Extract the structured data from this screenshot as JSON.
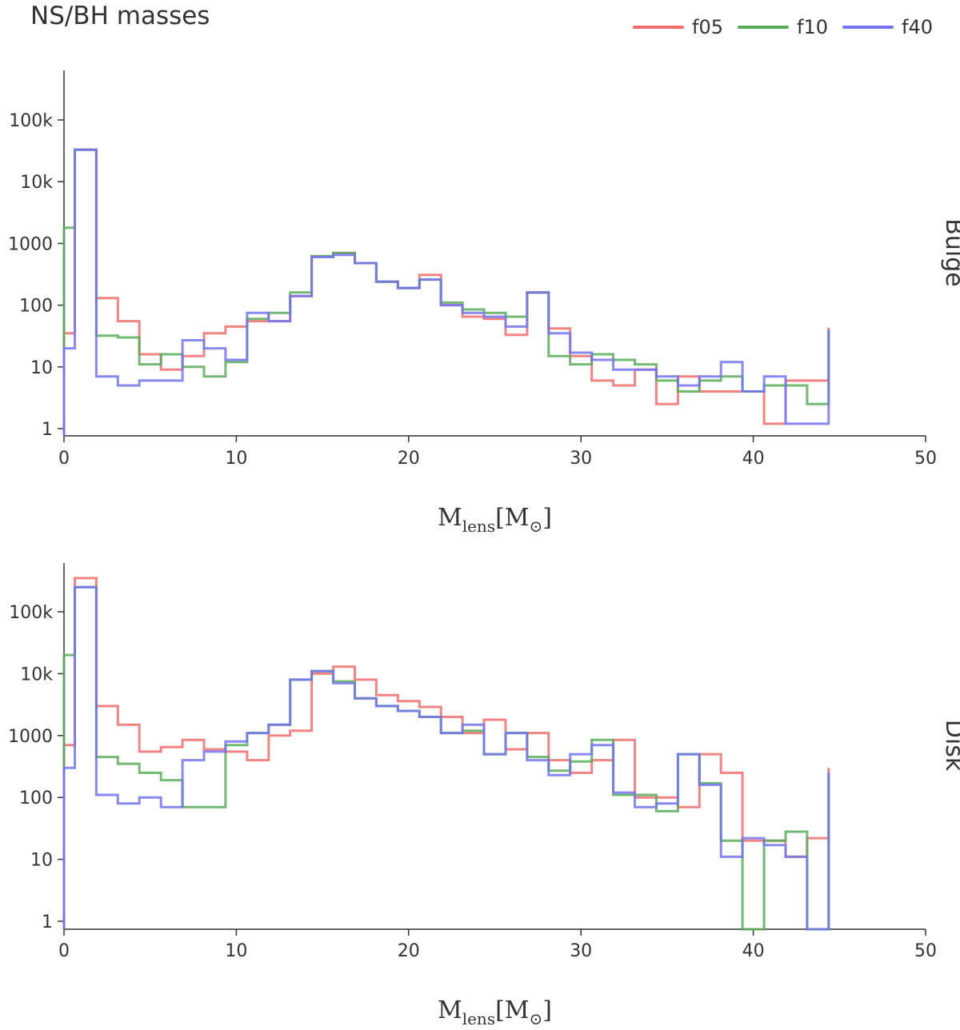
{
  "title": "NS/BH masses",
  "legend": [
    {
      "name": "f05",
      "color": "#f06e6e"
    },
    {
      "name": "f10",
      "color": "#5aac5a"
    },
    {
      "name": "f40",
      "color": "#7474f0"
    }
  ],
  "chart_data": [
    {
      "type": "histogram-step",
      "panel_label": "Bulge",
      "xlabel_main": "M",
      "xlabel_sub": "lens",
      "xlabel_unit_open": "[M",
      "xlabel_unit_sub": "⊙",
      "xlabel_unit_close": "]",
      "yscale": "log",
      "xlim": [
        0,
        50
      ],
      "ylim": [
        0.8,
        600000
      ],
      "xticks": [
        0,
        10,
        20,
        30,
        40,
        50
      ],
      "xtick_labels": [
        "0",
        "10",
        "20",
        "30",
        "40",
        "50"
      ],
      "yticks": [
        1,
        10,
        100,
        1000,
        10000,
        100000
      ],
      "ytick_labels": [
        "1",
        "10",
        "100",
        "1000",
        "10k",
        "100k"
      ],
      "bin_edges": [
        0,
        0.625,
        1.875,
        3.125,
        4.375,
        5.625,
        6.875,
        8.125,
        9.375,
        10.625,
        11.875,
        13.125,
        14.375,
        15.625,
        16.875,
        18.125,
        19.375,
        20.625,
        21.875,
        23.125,
        24.375,
        25.625,
        26.875,
        28.125,
        29.375,
        30.625,
        31.875,
        33.125,
        34.375,
        35.625,
        36.875,
        38.125,
        39.375,
        40.625,
        41.875,
        43.125,
        44.375
      ],
      "series": [
        {
          "name": "f05",
          "values": [
            35,
            33000,
            130,
            55,
            16,
            9,
            15,
            35,
            45,
            55,
            55,
            140,
            620,
            700,
            480,
            240,
            190,
            310,
            100,
            65,
            60,
            33,
            160,
            42,
            15,
            6,
            5,
            9,
            2.5,
            7,
            4,
            4,
            4,
            1.2,
            6,
            6,
            43
          ]
        },
        {
          "name": "f10",
          "values": [
            1800,
            33000,
            32,
            30,
            11,
            16,
            10,
            7,
            12,
            60,
            75,
            160,
            620,
            700,
            480,
            240,
            190,
            260,
            110,
            85,
            75,
            65,
            160,
            15,
            11,
            16,
            13,
            11,
            6,
            4,
            6,
            7,
            4,
            5,
            5,
            2.5,
            40
          ]
        },
        {
          "name": "f40",
          "values": [
            20,
            33000,
            7,
            5,
            6,
            6,
            27,
            20,
            13,
            75,
            55,
            140,
            600,
            650,
            480,
            240,
            190,
            260,
            100,
            75,
            65,
            45,
            160,
            35,
            17,
            13,
            9,
            9,
            7,
            5,
            7,
            12,
            4,
            7,
            1.2,
            1.2,
            40
          ]
        }
      ]
    },
    {
      "type": "histogram-step",
      "panel_label": "Disk",
      "xlabel_main": "M",
      "xlabel_sub": "lens",
      "xlabel_unit_open": "[M",
      "xlabel_unit_sub": "⊙",
      "xlabel_unit_close": "]",
      "yscale": "log",
      "xlim": [
        0,
        50
      ],
      "ylim": [
        0.8,
        600000
      ],
      "xticks": [
        0,
        10,
        20,
        30,
        40,
        50
      ],
      "xtick_labels": [
        "0",
        "10",
        "20",
        "30",
        "40",
        "50"
      ],
      "yticks": [
        1,
        10,
        100,
        1000,
        10000,
        100000
      ],
      "ytick_labels": [
        "1",
        "10",
        "100",
        "1000",
        "10k",
        "100k"
      ],
      "bin_edges": [
        0,
        0.625,
        1.875,
        3.125,
        4.375,
        5.625,
        6.875,
        8.125,
        9.375,
        10.625,
        11.875,
        13.125,
        14.375,
        15.625,
        16.875,
        18.125,
        19.375,
        20.625,
        21.875,
        23.125,
        24.375,
        25.625,
        26.875,
        28.125,
        29.375,
        30.625,
        31.875,
        33.125,
        34.375,
        35.625,
        36.875,
        38.125,
        39.375,
        40.625,
        41.875,
        43.125,
        44.375
      ],
      "series": [
        {
          "name": "f05",
          "values": [
            700,
            350000,
            3000,
            1500,
            550,
            650,
            850,
            600,
            550,
            400,
            1000,
            1200,
            10000,
            13000,
            8000,
            4500,
            3600,
            2900,
            2000,
            1100,
            1800,
            600,
            1100,
            400,
            250,
            400,
            850,
            100,
            100,
            70,
            500,
            250,
            20,
            20,
            11,
            22,
            300
          ]
        },
        {
          "name": "f10",
          "values": [
            20000,
            250000,
            450,
            350,
            250,
            190,
            70,
            70,
            700,
            1100,
            1500,
            8000,
            11000,
            7500,
            4000,
            3000,
            2500,
            2000,
            1100,
            1200,
            500,
            1100,
            450,
            270,
            380,
            850,
            110,
            110,
            60,
            500,
            170,
            20,
            0,
            20,
            28,
            0,
            250
          ]
        },
        {
          "name": "f40",
          "values": [
            300,
            250000,
            110,
            80,
            100,
            70,
            400,
            550,
            800,
            1100,
            1500,
            8000,
            11000,
            7000,
            4000,
            3000,
            2500,
            2000,
            1100,
            1500,
            500,
            1100,
            400,
            230,
            500,
            700,
            120,
            70,
            80,
            500,
            160,
            11,
            22,
            17,
            11,
            0,
            250
          ]
        }
      ]
    }
  ]
}
